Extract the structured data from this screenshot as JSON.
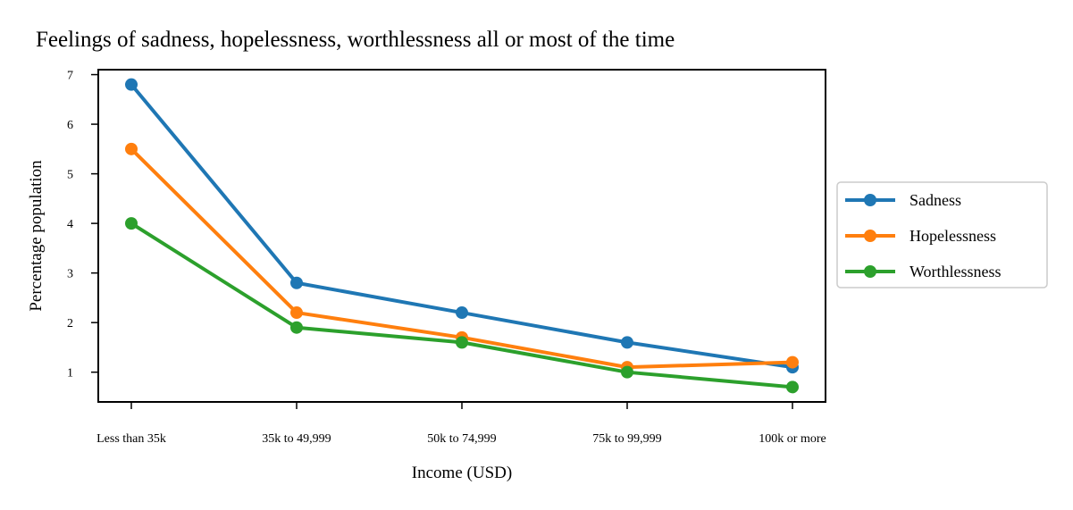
{
  "chart_data": {
    "type": "line",
    "title": "Feelings of sadness, hopelessness, worthlessness all or most of the time",
    "xlabel": "Income (USD)",
    "ylabel": "Percentage population",
    "categories": [
      "Less than 35k",
      "35k to 49,999",
      "50k to 74,999",
      "75k to 99,999",
      "100k or more"
    ],
    "yticks": [
      "1",
      "2",
      "3",
      "4",
      "5",
      "6",
      "7"
    ],
    "ylim": [
      0.4,
      7.1
    ],
    "grid": false,
    "legend_position": "right-outside",
    "series": [
      {
        "name": "Sadness",
        "color": "#1f77b4",
        "values": [
          6.8,
          2.8,
          2.2,
          1.6,
          1.1
        ]
      },
      {
        "name": "Hopelessness",
        "color": "#ff7f0e",
        "values": [
          5.5,
          2.2,
          1.7,
          1.1,
          1.2
        ]
      },
      {
        "name": "Worthlessness",
        "color": "#2ca02c",
        "values": [
          4.0,
          1.9,
          1.6,
          1.0,
          0.7
        ]
      }
    ]
  }
}
